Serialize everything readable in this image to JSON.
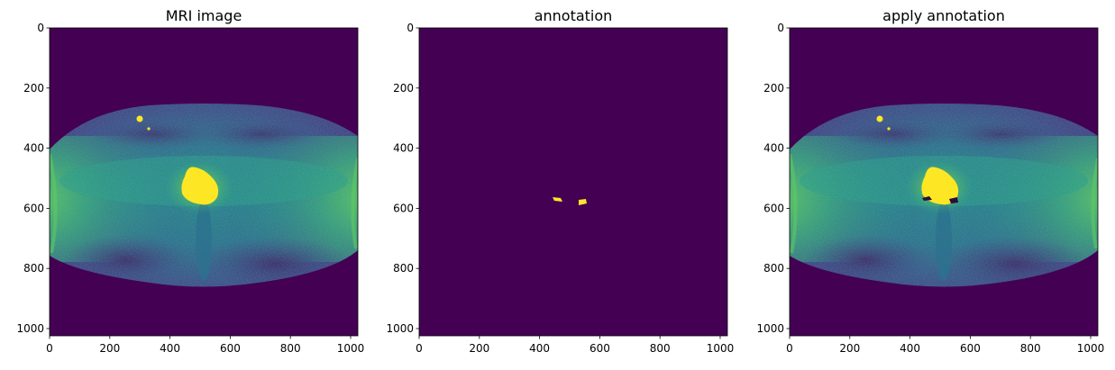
{
  "figure": {
    "panels": [
      {
        "id": "mri",
        "title": "MRI image",
        "image": "mri-slice"
      },
      {
        "id": "annotation",
        "title": "annotation",
        "image": "annotation-mask"
      },
      {
        "id": "applied",
        "title": "apply annotation",
        "image": "mri-slice-with-mask"
      }
    ],
    "x_ticks": [
      "0",
      "200",
      "400",
      "600",
      "800",
      "1000"
    ],
    "y_ticks": [
      "0",
      "200",
      "400",
      "600",
      "800",
      "1000"
    ],
    "colormap": "viridis",
    "colors": {
      "background_dark": "#440154",
      "mid": "#21918c",
      "bright": "#5ec962",
      "highlight": "#fde725",
      "mask_hole": "#2c0c3a"
    }
  }
}
